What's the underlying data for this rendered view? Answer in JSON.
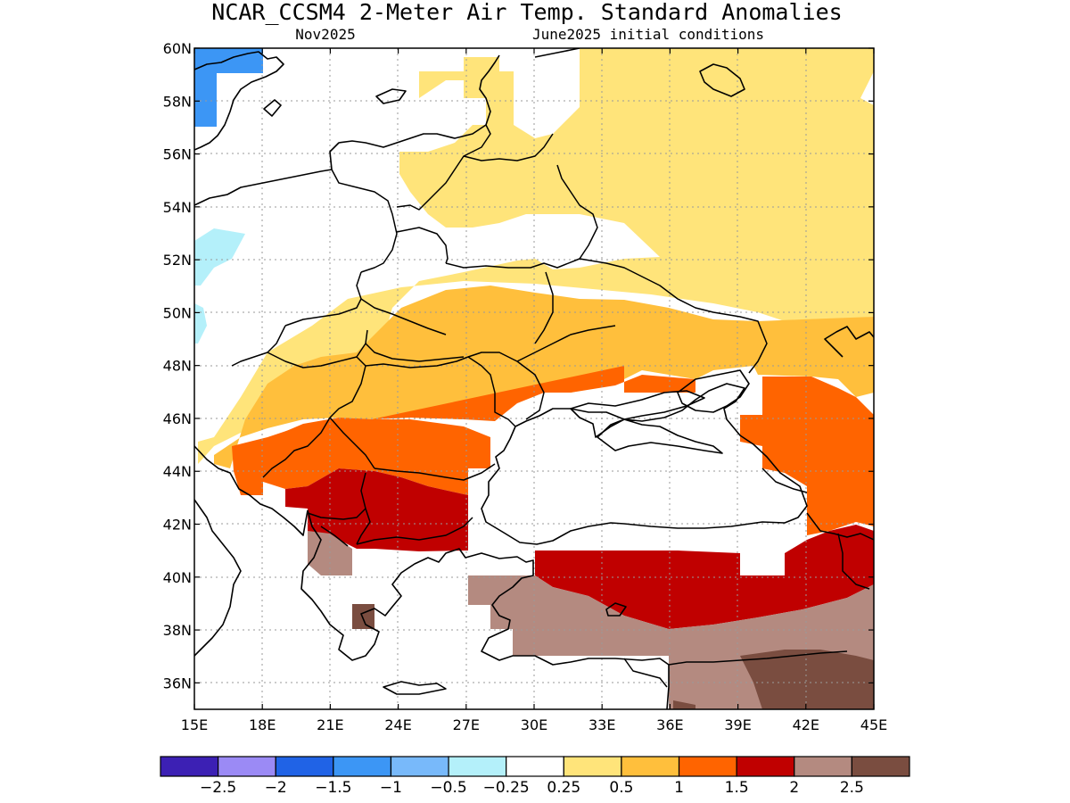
{
  "title": "NCAR_CCSM4 2-Meter Air Temp. Standard Anomalies",
  "subtitle_left": "Nov2025",
  "subtitle_right": "June2025 initial conditions",
  "map": {
    "lat_range": [
      35,
      60
    ],
    "lon_range": [
      15,
      45
    ],
    "lat_ticks": [
      "60N",
      "58N",
      "56N",
      "54N",
      "52N",
      "50N",
      "48N",
      "46N",
      "44N",
      "42N",
      "40N",
      "38N",
      "36N"
    ],
    "lon_ticks": [
      "15E",
      "18E",
      "21E",
      "24E",
      "27E",
      "30E",
      "33E",
      "36E",
      "39E",
      "42E",
      "45E"
    ],
    "grid": true,
    "region_fills": [
      {
        "class": "0.25 to 0.5",
        "color": "#ffe47a",
        "area": "northeast Europe, Russia, Baltic"
      },
      {
        "class": "0.5 to 1",
        "color": "#ffbf3c",
        "area": "Ukraine, Romania, Pannonian basin"
      },
      {
        "class": "1 to 1.5",
        "color": "#ff6400",
        "area": "Balkans, Caucasus"
      },
      {
        "class": "1.5 to 2",
        "color": "#c00000",
        "area": "Bulgaria, Serbia, northern Turkey"
      },
      {
        "class": "2 to 2.5",
        "color": "#b48a80",
        "area": "Turkey, Greece"
      },
      {
        "class": "> 2.5",
        "color": "#7a4d40",
        "area": "southeast Turkey"
      },
      {
        "class": "-1.5 to -1",
        "color": "#3c96f5",
        "area": "southern Sweden"
      },
      {
        "class": "-0.5 to -0.25",
        "color": "#b4f0fa",
        "area": "Poland / Germany border"
      }
    ]
  },
  "colorbar": {
    "colors": [
      "#3c20b4",
      "#9b8af5",
      "#2063e6",
      "#3c96f5",
      "#78b9fa",
      "#b4f0fa",
      "#ffffff",
      "#ffe47a",
      "#ffbf3c",
      "#ff6400",
      "#c00000",
      "#b48a80",
      "#7a4d40"
    ],
    "labels": [
      "−2.5",
      "−2",
      "−1.5",
      "−1",
      "−0.5",
      "−0.25",
      "0.25",
      "0.5",
      "1",
      "1.5",
      "2",
      "2.5"
    ]
  }
}
